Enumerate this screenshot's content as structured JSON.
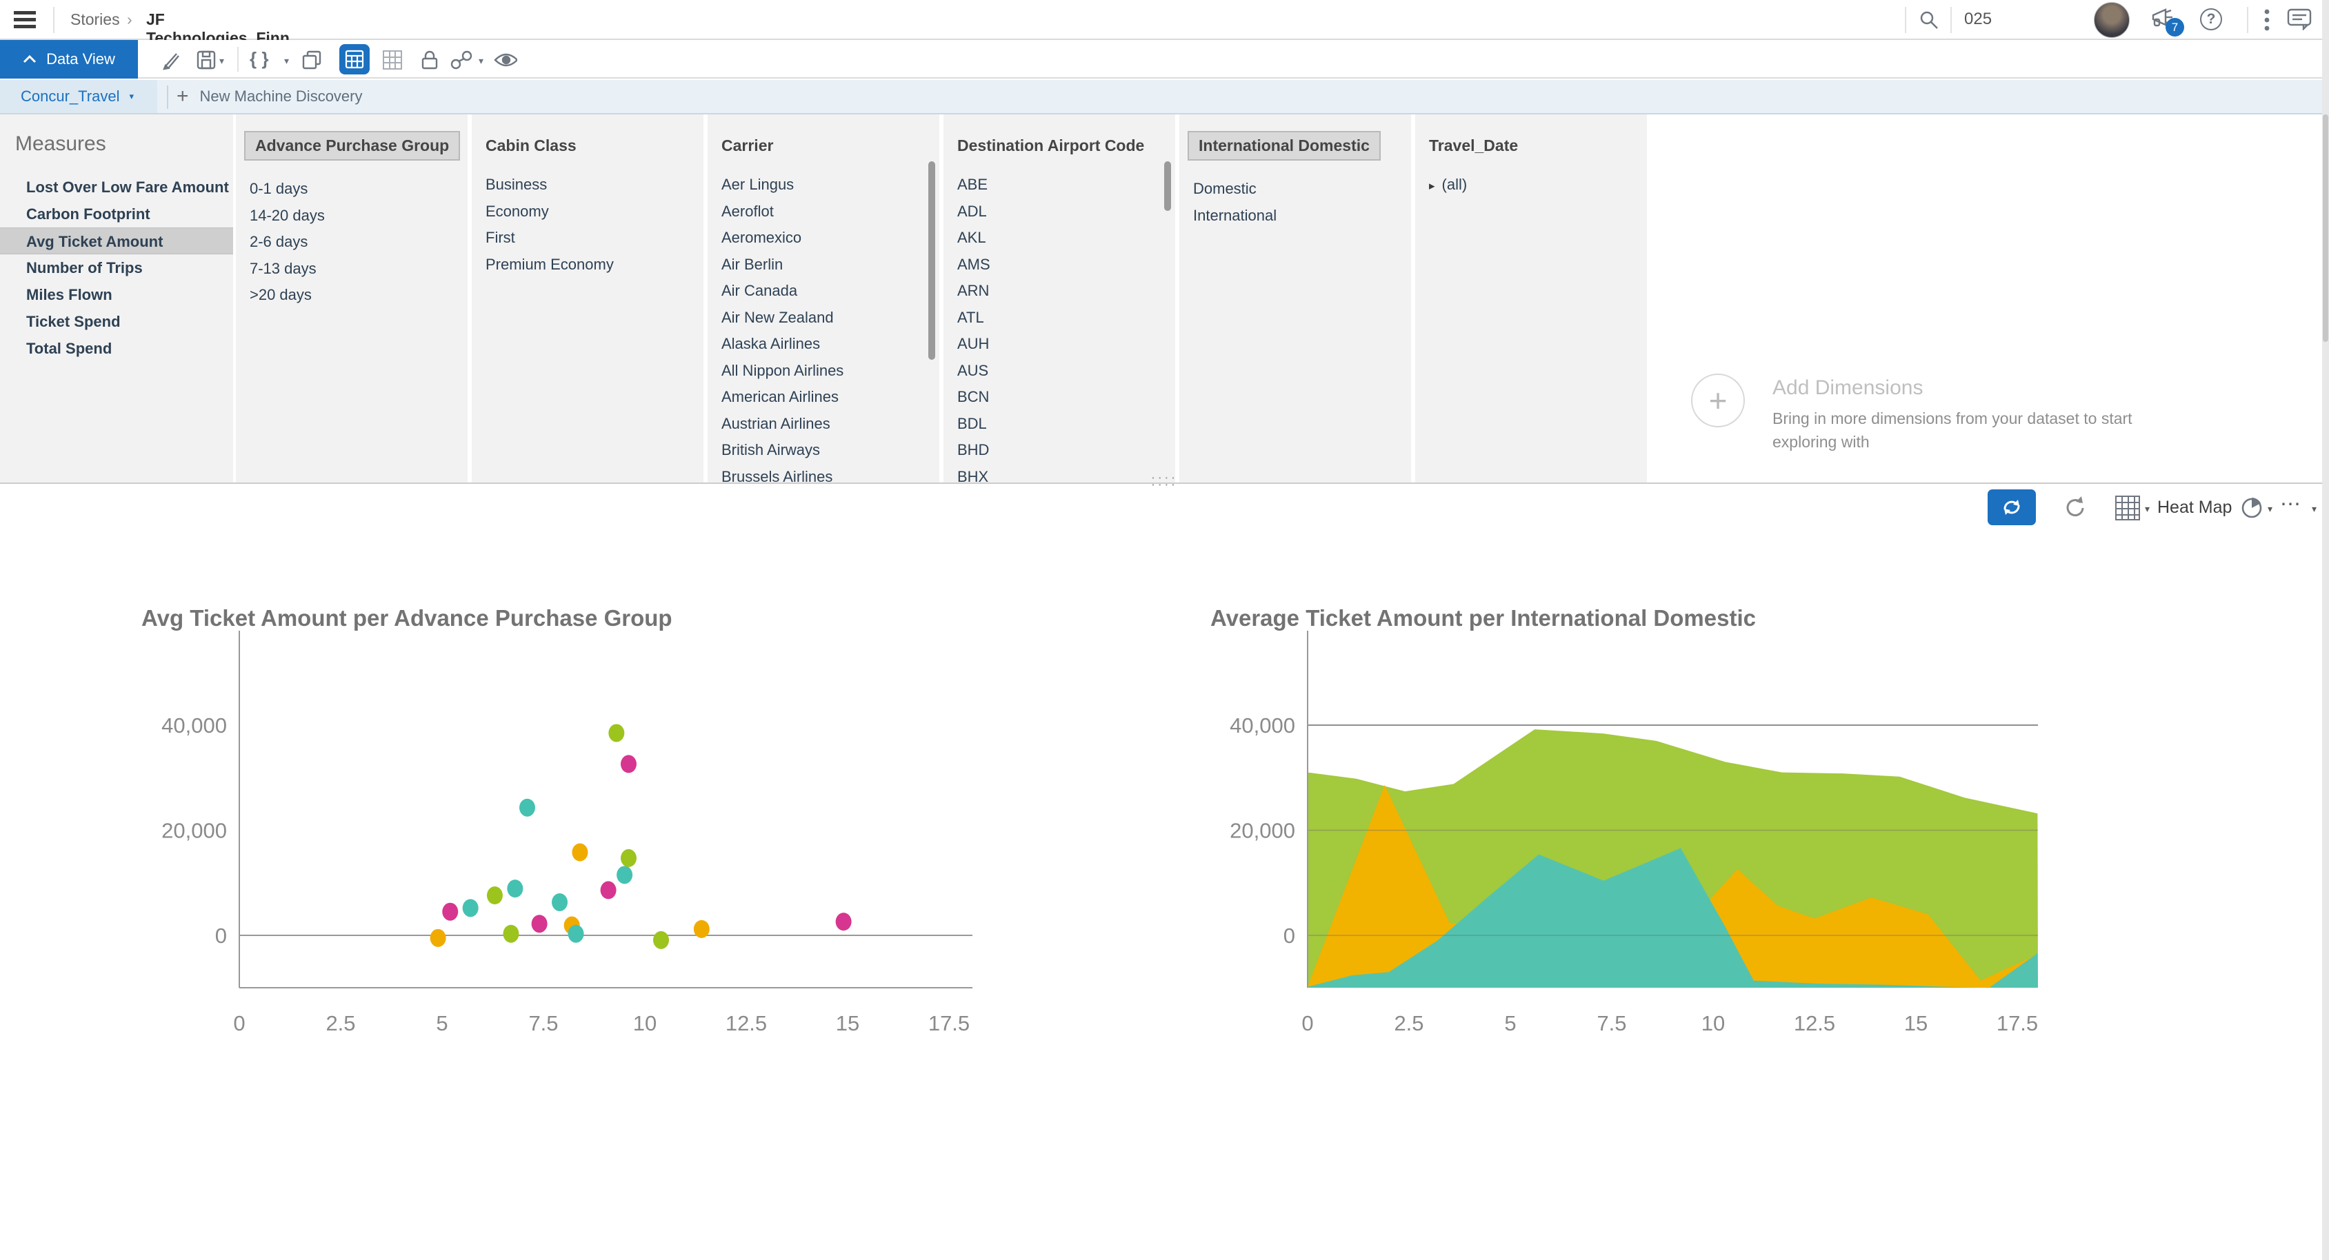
{
  "colors": {
    "accent": "#1b70c0",
    "panel_bg": "#f2f2f2",
    "chip_bg": "#d9d9d9",
    "selected_row": "#cfcfcf",
    "chart_title_text": "#737373",
    "axis_text": "#8a8a8a"
  },
  "icons": {
    "menu": "hamburger",
    "search": "magnifier",
    "notifications": "megaphone-with-badge",
    "help": "question-circle",
    "overflow": "kebab-dots",
    "feedback": "chat-bubble",
    "edit": "pencil",
    "save": "disk",
    "formula": "curly-braces",
    "copy": "overlapping-squares",
    "table_view_selected": "table-grid-blue",
    "grid_view": "table-grid",
    "lock": "padlock",
    "link": "chain",
    "preview": "eye",
    "sync": "sync-arrows",
    "refresh": "refresh-arrow",
    "chart_type": "chart-picker",
    "more": "ellipsis",
    "add_dimension": "plus-circle"
  },
  "top_bar": {
    "breadcrumb": {
      "root": "Stories",
      "separator": "›",
      "current": "JF Technologies_Finn"
    },
    "search_value": "025",
    "notification_badge": "7",
    "help_glyph": "?"
  },
  "toolbar": {
    "data_view_label": "Data View",
    "braces_glyph": "{ }"
  },
  "tabs": {
    "active": "Concur_Travel",
    "new_tab_label": "New Machine Discovery",
    "plus_glyph": "+"
  },
  "data_panel": {
    "measures": {
      "title": "Measures",
      "selected": "Avg Ticket Amount",
      "items": [
        "Lost Over Low Fare Amount",
        "Carbon Footprint",
        "Avg Ticket Amount",
        "Number of Trips",
        "Miles Flown",
        "Ticket Spend",
        "Total Spend"
      ]
    },
    "columns": [
      {
        "title": "Advance Purchase Group",
        "highlighted": true,
        "scrollbar": "none",
        "expandable": false,
        "items": [
          "0-1 days",
          "14-20 days",
          "2-6 days",
          "7-13 days",
          ">20 days"
        ]
      },
      {
        "title": "Cabin Class",
        "highlighted": false,
        "scrollbar": "none",
        "expandable": false,
        "items": [
          "Business",
          "Economy",
          "First",
          "Premium Economy"
        ]
      },
      {
        "title": "Carrier",
        "highlighted": false,
        "scrollbar": "tall",
        "expandable": false,
        "items": [
          "Aer Lingus",
          "Aeroflot",
          "Aeromexico",
          "Air Berlin",
          "Air Canada",
          "Air New Zealand",
          "Alaska Airlines",
          "All Nippon Airlines",
          "American Airlines",
          "Austrian Airlines",
          "British Airways",
          "Brussels Airlines"
        ]
      },
      {
        "title": "Destination Airport Code",
        "highlighted": false,
        "scrollbar": "short",
        "expandable": false,
        "items": [
          "ABE",
          "ADL",
          "AKL",
          "AMS",
          "ARN",
          "ATL",
          "AUH",
          "AUS",
          "BCN",
          "BDL",
          "BHD",
          "BHX"
        ]
      },
      {
        "title": "International Domestic",
        "highlighted": true,
        "scrollbar": "none",
        "expandable": false,
        "items": [
          "Domestic",
          "International"
        ]
      },
      {
        "title": "Travel_Date",
        "highlighted": false,
        "scrollbar": "none",
        "expandable": true,
        "items": [
          "(all)"
        ]
      }
    ],
    "add_dimensions": {
      "title": "Add Dimensions",
      "description": "Bring in more dimensions from your dataset to start exploring with"
    }
  },
  "chart_toolbar": {
    "heat_map_label": "Heat Map",
    "more_glyph": "⋯"
  },
  "chart_data": [
    {
      "type": "scatter",
      "title": "Avg Ticket Amount per Advance Purchase Group",
      "xlabel": "",
      "ylabel": "",
      "xlim": [
        0,
        18.1
      ],
      "ylim": [
        -10000,
        57000
      ],
      "grid": "zero-line-only",
      "legend": "none",
      "x_ticks": [
        "0",
        "2.5",
        "5",
        "7.5",
        "10",
        "12.5",
        "15",
        "17.5"
      ],
      "y_ticks": [
        {
          "v": 0,
          "label": "0"
        },
        {
          "v": 20000,
          "label": "20,000"
        },
        {
          "v": 40000,
          "label": "40,000"
        }
      ],
      "palette": {
        "yellow": "#f0ab00",
        "magenta": "#d6368f",
        "teal": "#45c1b1",
        "green": "#9cc41d"
      },
      "points": [
        {
          "x": 4.9,
          "y": -500,
          "c": "yellow"
        },
        {
          "x": 5.2,
          "y": 4500,
          "c": "magenta"
        },
        {
          "x": 5.7,
          "y": 5200,
          "c": "teal"
        },
        {
          "x": 6.3,
          "y": 7600,
          "c": "green"
        },
        {
          "x": 6.7,
          "y": 300,
          "c": "green"
        },
        {
          "x": 6.8,
          "y": 8900,
          "c": "teal"
        },
        {
          "x": 7.1,
          "y": 24300,
          "c": "teal"
        },
        {
          "x": 7.4,
          "y": 2200,
          "c": "magenta"
        },
        {
          "x": 7.9,
          "y": 6300,
          "c": "teal"
        },
        {
          "x": 8.2,
          "y": 1900,
          "c": "yellow"
        },
        {
          "x": 8.3,
          "y": 300,
          "c": "teal"
        },
        {
          "x": 8.4,
          "y": 15800,
          "c": "yellow"
        },
        {
          "x": 9.1,
          "y": 8600,
          "c": "magenta"
        },
        {
          "x": 9.3,
          "y": 38500,
          "c": "green"
        },
        {
          "x": 9.5,
          "y": 11500,
          "c": "teal"
        },
        {
          "x": 9.6,
          "y": 14700,
          "c": "green"
        },
        {
          "x": 9.6,
          "y": 32600,
          "c": "magenta"
        },
        {
          "x": 10.4,
          "y": -900,
          "c": "green"
        },
        {
          "x": 11.4,
          "y": 1200,
          "c": "yellow"
        },
        {
          "x": 14.9,
          "y": 2600,
          "c": "magenta"
        }
      ]
    },
    {
      "type": "area",
      "title": "Average Ticket Amount per International Domestic",
      "xlabel": "",
      "ylabel": "",
      "xlim": [
        0,
        18
      ],
      "ylim": [
        -10000,
        57000
      ],
      "grid": "horizontal",
      "legend": "none",
      "x_ticks": [
        "0",
        "2.5",
        "5",
        "7.5",
        "10",
        "12.5",
        "15",
        "17.5"
      ],
      "y_ticks": [
        {
          "v": 0,
          "label": "0"
        },
        {
          "v": 20000,
          "label": "20,000"
        },
        {
          "v": 40000,
          "label": "40,000"
        }
      ],
      "series": [
        {
          "color": "#a3c93c",
          "points": [
            [
              0,
              31000
            ],
            [
              1.2,
              29800
            ],
            [
              2.4,
              27400
            ],
            [
              3.6,
              28800
            ],
            [
              5.6,
              39200
            ],
            [
              7.3,
              38400
            ],
            [
              8.6,
              37000
            ],
            [
              10.3,
              33000
            ],
            [
              11.7,
              31000
            ],
            [
              13.2,
              30800
            ],
            [
              14.6,
              30200
            ],
            [
              16.2,
              26200
            ],
            [
              18,
              23200
            ]
          ]
        },
        {
          "color": "#f2b200",
          "points": [
            [
              0,
              -9800
            ],
            [
              1.9,
              28600
            ],
            [
              3.5,
              2400
            ],
            [
              5,
              600
            ],
            [
              7,
              600
            ],
            [
              9.4,
              2400
            ],
            [
              10.6,
              12600
            ],
            [
              11.6,
              5600
            ],
            [
              12.5,
              3200
            ],
            [
              13.9,
              7200
            ],
            [
              15.3,
              4000
            ],
            [
              16.6,
              -8600
            ],
            [
              18,
              -3600
            ]
          ]
        },
        {
          "color": "#53c3af",
          "points": [
            [
              0,
              -9800
            ],
            [
              1.1,
              -7600
            ],
            [
              2,
              -7000
            ],
            [
              3.2,
              -1000
            ],
            [
              4.4,
              7000
            ],
            [
              5.7,
              15400
            ],
            [
              7.3,
              10400
            ],
            [
              9.2,
              16600
            ],
            [
              10.3,
              1600
            ],
            [
              11,
              -8600
            ],
            [
              12.6,
              -9200
            ],
            [
              14.2,
              -9400
            ],
            [
              15.8,
              -9800
            ],
            [
              16.8,
              -10000
            ],
            [
              18,
              -3400
            ]
          ]
        }
      ]
    }
  ]
}
